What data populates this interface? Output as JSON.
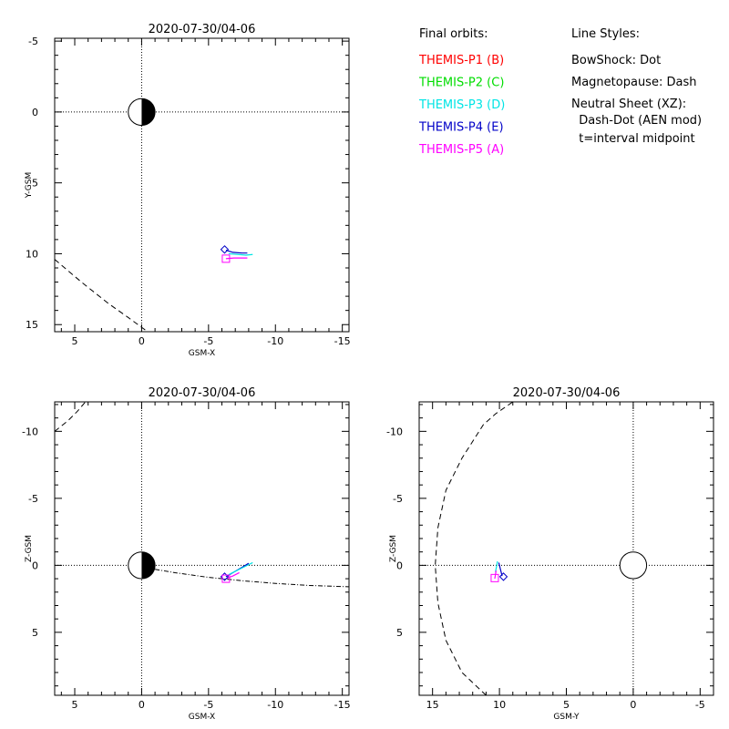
{
  "colors": {
    "THEMIS-P1": "#ff0000",
    "THEMIS-P2": "#00dd00",
    "THEMIS-P3": "#00e5e5",
    "THEMIS-P4": "#0000c8",
    "THEMIS-P5": "#ff00ff",
    "axis": "#000000"
  },
  "legend": {
    "orbits_title": "Final orbits:",
    "orbits": [
      {
        "label": "THEMIS-P1 (B)",
        "color": "#ff0000"
      },
      {
        "label": "THEMIS-P2 (C)",
        "color": "#00dd00"
      },
      {
        "label": "THEMIS-P3 (D)",
        "color": "#00e5e5"
      },
      {
        "label": "THEMIS-P4 (E)",
        "color": "#0000c8"
      },
      {
        "label": "THEMIS-P5 (A)",
        "color": "#ff00ff"
      }
    ],
    "styles_title": "Line Styles:",
    "styles": [
      "BowShock: Dot",
      "Magnetopause: Dash",
      "Neutral Sheet (XZ):",
      "  Dash-Dot (AEN mod)",
      "  t=interval midpoint"
    ]
  },
  "chart_data": [
    {
      "type": "scatter",
      "title": "2020-07-30/04-06",
      "xlabel": "GSM-X",
      "ylabel": "Y-GSM",
      "xlim": [
        6.5,
        -15.5
      ],
      "ylim": [
        -5.2,
        15.5
      ],
      "xticks": [
        5,
        0,
        -5,
        -10,
        -15
      ],
      "yticks": [
        -5,
        0,
        5,
        10,
        15
      ],
      "earth": {
        "x": 0,
        "y": 0,
        "r": 1,
        "shaded": "night"
      },
      "magnetopause": {
        "style": "dash",
        "x": [
          6.5,
          4.5,
          2.5,
          1.0,
          -0.3
        ],
        "y": [
          10.4,
          12.0,
          13.5,
          14.5,
          15.4
        ]
      },
      "orbits": [
        {
          "name": "THEMIS-P4",
          "x": [
            -6.3,
            -6.8,
            -7.5,
            -7.9
          ],
          "y": [
            9.75,
            9.9,
            9.95,
            9.95
          ]
        },
        {
          "name": "THEMIS-P3",
          "x": [
            -6.5,
            -7.2,
            -7.8,
            -8.3
          ],
          "y": [
            10.0,
            10.05,
            10.1,
            10.05
          ]
        },
        {
          "name": "THEMIS-P5",
          "x": [
            -6.3,
            -6.9,
            -7.5,
            -7.9
          ],
          "y": [
            10.35,
            10.3,
            10.3,
            10.3
          ]
        }
      ],
      "markers": [
        {
          "name": "THEMIS-P4",
          "shape": "diamond",
          "x": -6.2,
          "y": 9.7
        },
        {
          "name": "THEMIS-P5",
          "shape": "square",
          "x": -6.3,
          "y": 10.35
        }
      ]
    },
    {
      "type": "scatter",
      "title": "2020-07-30/04-06",
      "xlabel": "GSM-X",
      "ylabel": "Z-GSM",
      "xlim": [
        6.5,
        -15.5
      ],
      "ylim": [
        -12.2,
        9.7
      ],
      "xticks": [
        5,
        0,
        -5,
        -10,
        -15
      ],
      "yticks": [
        5,
        0,
        -5,
        -10
      ],
      "earth": {
        "x": 0,
        "y": 0,
        "r": 1,
        "shaded": "night"
      },
      "magnetopause": {
        "style": "dash",
        "x": [
          6.5,
          5.5,
          4.8,
          4.2
        ],
        "y": [
          -10.0,
          -10.8,
          -11.5,
          -12.2
        ]
      },
      "neutral_sheet": {
        "style": "dashdot",
        "x": [
          -1.0,
          -2.5,
          -5.0,
          -7.5,
          -10.0,
          -12.5,
          -15.5
        ],
        "y": [
          0.3,
          0.55,
          0.9,
          1.15,
          1.35,
          1.5,
          1.6
        ]
      },
      "orbits": [
        {
          "name": "THEMIS-P5",
          "x": [
            -6.3,
            -6.8,
            -7.3
          ],
          "y": [
            1.0,
            0.8,
            0.55
          ]
        },
        {
          "name": "THEMIS-P4",
          "x": [
            -6.3,
            -6.9,
            -7.5,
            -8.0
          ],
          "y": [
            0.85,
            0.5,
            0.15,
            -0.15
          ]
        },
        {
          "name": "THEMIS-P3",
          "x": [
            -6.5,
            -7.2,
            -7.8,
            -8.3
          ],
          "y": [
            0.7,
            0.35,
            0.05,
            -0.2
          ]
        }
      ],
      "markers": [
        {
          "name": "THEMIS-P4",
          "shape": "diamond",
          "x": -6.2,
          "y": 0.85
        },
        {
          "name": "THEMIS-P5",
          "shape": "square",
          "x": -6.3,
          "y": 1.0
        }
      ]
    },
    {
      "type": "scatter",
      "title": "2020-07-30/04-06",
      "xlabel": "GSM-Y",
      "ylabel": "Z-GSM",
      "xlim": [
        16,
        -6
      ],
      "ylim": [
        -12.2,
        9.7
      ],
      "xticks": [
        15,
        10,
        5,
        0,
        -5
      ],
      "yticks": [
        5,
        0,
        -5,
        -10
      ],
      "earth": {
        "x": 0,
        "y": 0,
        "r": 1,
        "shaded": "none"
      },
      "magnetopause": {
        "style": "dash",
        "x": [
          11.0,
          12.8,
          14.0,
          14.6,
          14.8,
          14.6,
          14.0,
          12.8,
          11.2,
          10.3,
          9.0
        ],
        "y": [
          9.7,
          8.0,
          5.6,
          2.8,
          0,
          -2.8,
          -5.6,
          -8.0,
          -10.5,
          -11.3,
          -12.2
        ]
      },
      "orbits": [
        {
          "name": "THEMIS-P3",
          "x": [
            10.3,
            10.2,
            10.15
          ],
          "y": [
            0.5,
            0.0,
            -0.3
          ]
        },
        {
          "name": "THEMIS-P4",
          "x": [
            9.8,
            9.95,
            10.05
          ],
          "y": [
            0.8,
            0.2,
            -0.2
          ]
        },
        {
          "name": "THEMIS-P5",
          "x": [
            10.35,
            10.3,
            10.25
          ],
          "y": [
            1.0,
            0.7,
            0.4
          ]
        }
      ],
      "markers": [
        {
          "name": "THEMIS-P5",
          "shape": "square",
          "x": 10.35,
          "y": 0.95
        },
        {
          "name": "THEMIS-P4",
          "shape": "diamond",
          "x": 9.7,
          "y": 0.85
        }
      ]
    }
  ]
}
